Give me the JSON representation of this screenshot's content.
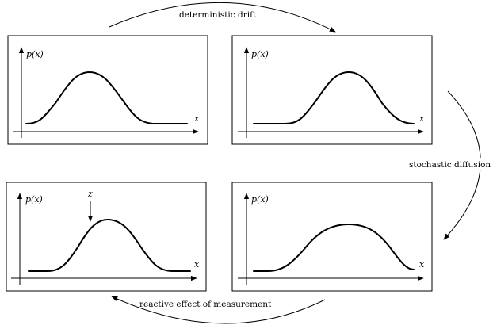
{
  "panels": [
    {
      "id": "top-left",
      "y_label": "p(x)",
      "x_label": "x"
    },
    {
      "id": "top-right",
      "y_label": "p(x)",
      "x_label": "x"
    },
    {
      "id": "bottom-left",
      "y_label": "p(x)",
      "x_label": "x",
      "marker_label": "z"
    },
    {
      "id": "bottom-right",
      "y_label": "p(x)",
      "x_label": "x"
    }
  ],
  "transitions": {
    "top": "deterministic drift",
    "right": "stochastic diffusion",
    "bottom": "reactive effect of measurement"
  }
}
